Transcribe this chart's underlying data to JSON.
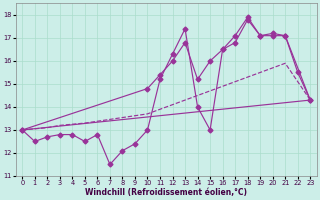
{
  "xlabel": "Windchill (Refroidissement éolien,°C)",
  "bg_color": "#cceee8",
  "grid_color": "#aaddcc",
  "line_color": "#993399",
  "xlim": [
    -0.5,
    23.5
  ],
  "ylim": [
    11,
    18.5
  ],
  "xticks": [
    0,
    1,
    2,
    3,
    4,
    5,
    6,
    7,
    8,
    9,
    10,
    11,
    12,
    13,
    14,
    15,
    16,
    17,
    18,
    19,
    20,
    21,
    22,
    23
  ],
  "yticks": [
    11,
    12,
    13,
    14,
    15,
    16,
    17,
    18
  ],
  "series1_x": [
    0,
    1,
    2,
    3,
    4,
    5,
    6,
    7,
    8,
    9,
    10,
    11,
    12,
    13,
    14,
    15,
    16,
    17,
    18,
    19,
    20,
    21,
    22,
    23
  ],
  "series1_y": [
    13.0,
    12.5,
    12.7,
    12.8,
    12.8,
    12.5,
    12.8,
    11.5,
    12.1,
    12.4,
    13.0,
    15.2,
    16.3,
    17.4,
    14.0,
    13.0,
    16.5,
    16.8,
    17.8,
    17.1,
    17.2,
    17.1,
    15.5,
    14.3
  ],
  "series2_x": [
    0,
    1,
    2,
    3,
    4,
    5,
    10,
    11,
    12,
    13,
    14,
    15,
    16,
    17,
    18,
    19,
    20,
    21,
    23
  ],
  "series2_y": [
    13.0,
    13.05,
    13.1,
    13.2,
    13.25,
    13.3,
    13.7,
    13.9,
    14.1,
    14.3,
    14.5,
    14.7,
    14.9,
    15.1,
    15.3,
    15.5,
    15.7,
    15.9,
    14.3
  ],
  "series3_x": [
    0,
    10,
    11,
    12,
    13,
    14,
    15,
    16,
    17,
    18,
    19,
    20,
    21,
    23
  ],
  "series3_y": [
    13.0,
    14.8,
    15.4,
    16.0,
    16.8,
    15.2,
    16.0,
    16.5,
    17.1,
    17.9,
    17.1,
    17.1,
    17.1,
    14.3
  ],
  "series4_x": [
    0,
    23
  ],
  "series4_y": [
    13.0,
    14.3
  ]
}
